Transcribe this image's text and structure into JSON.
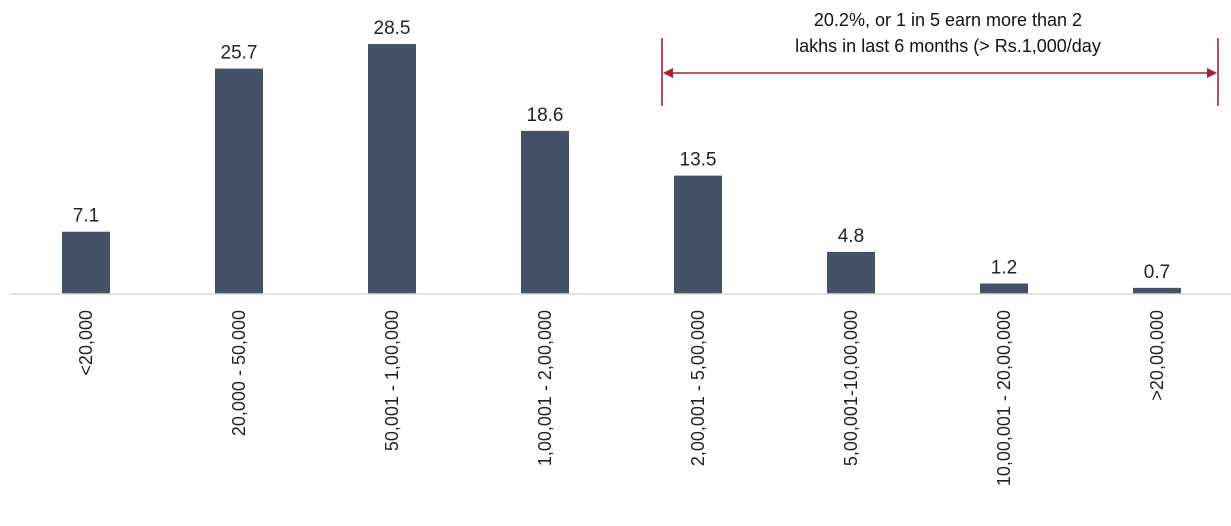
{
  "chart_data": {
    "type": "bar",
    "categories": [
      "<20,000",
      "20,000 - 50,000",
      "50,001 - 1,00,000",
      "1,00,001 - 2,00,000",
      "2,00,001 - 5,00,000",
      "5,00,001-10,00,000",
      "10,00,001 - 20,00,000",
      ">20,00,000"
    ],
    "values": [
      7.1,
      25.7,
      28.5,
      18.6,
      13.5,
      4.8,
      1.2,
      0.7
    ],
    "data_labels": [
      "7.1",
      "25.7",
      "28.5",
      "18.6",
      "13.5",
      "4.8",
      "1.2",
      "0.7"
    ],
    "title": "",
    "xlabel": "",
    "ylabel": "",
    "ylim": [
      0,
      30
    ],
    "grid": false,
    "legend": "none",
    "colors": {
      "bar": "#445168",
      "axis": "#d9d9d9",
      "annotation": "#a32035"
    },
    "annotation": {
      "lines": [
        "20.2%, or 1 in 5 earn more than 2",
        "lakhs in last 6 months (> Rs.1,000/day"
      ],
      "span_from_category": 4,
      "span_to_category": 7
    }
  }
}
